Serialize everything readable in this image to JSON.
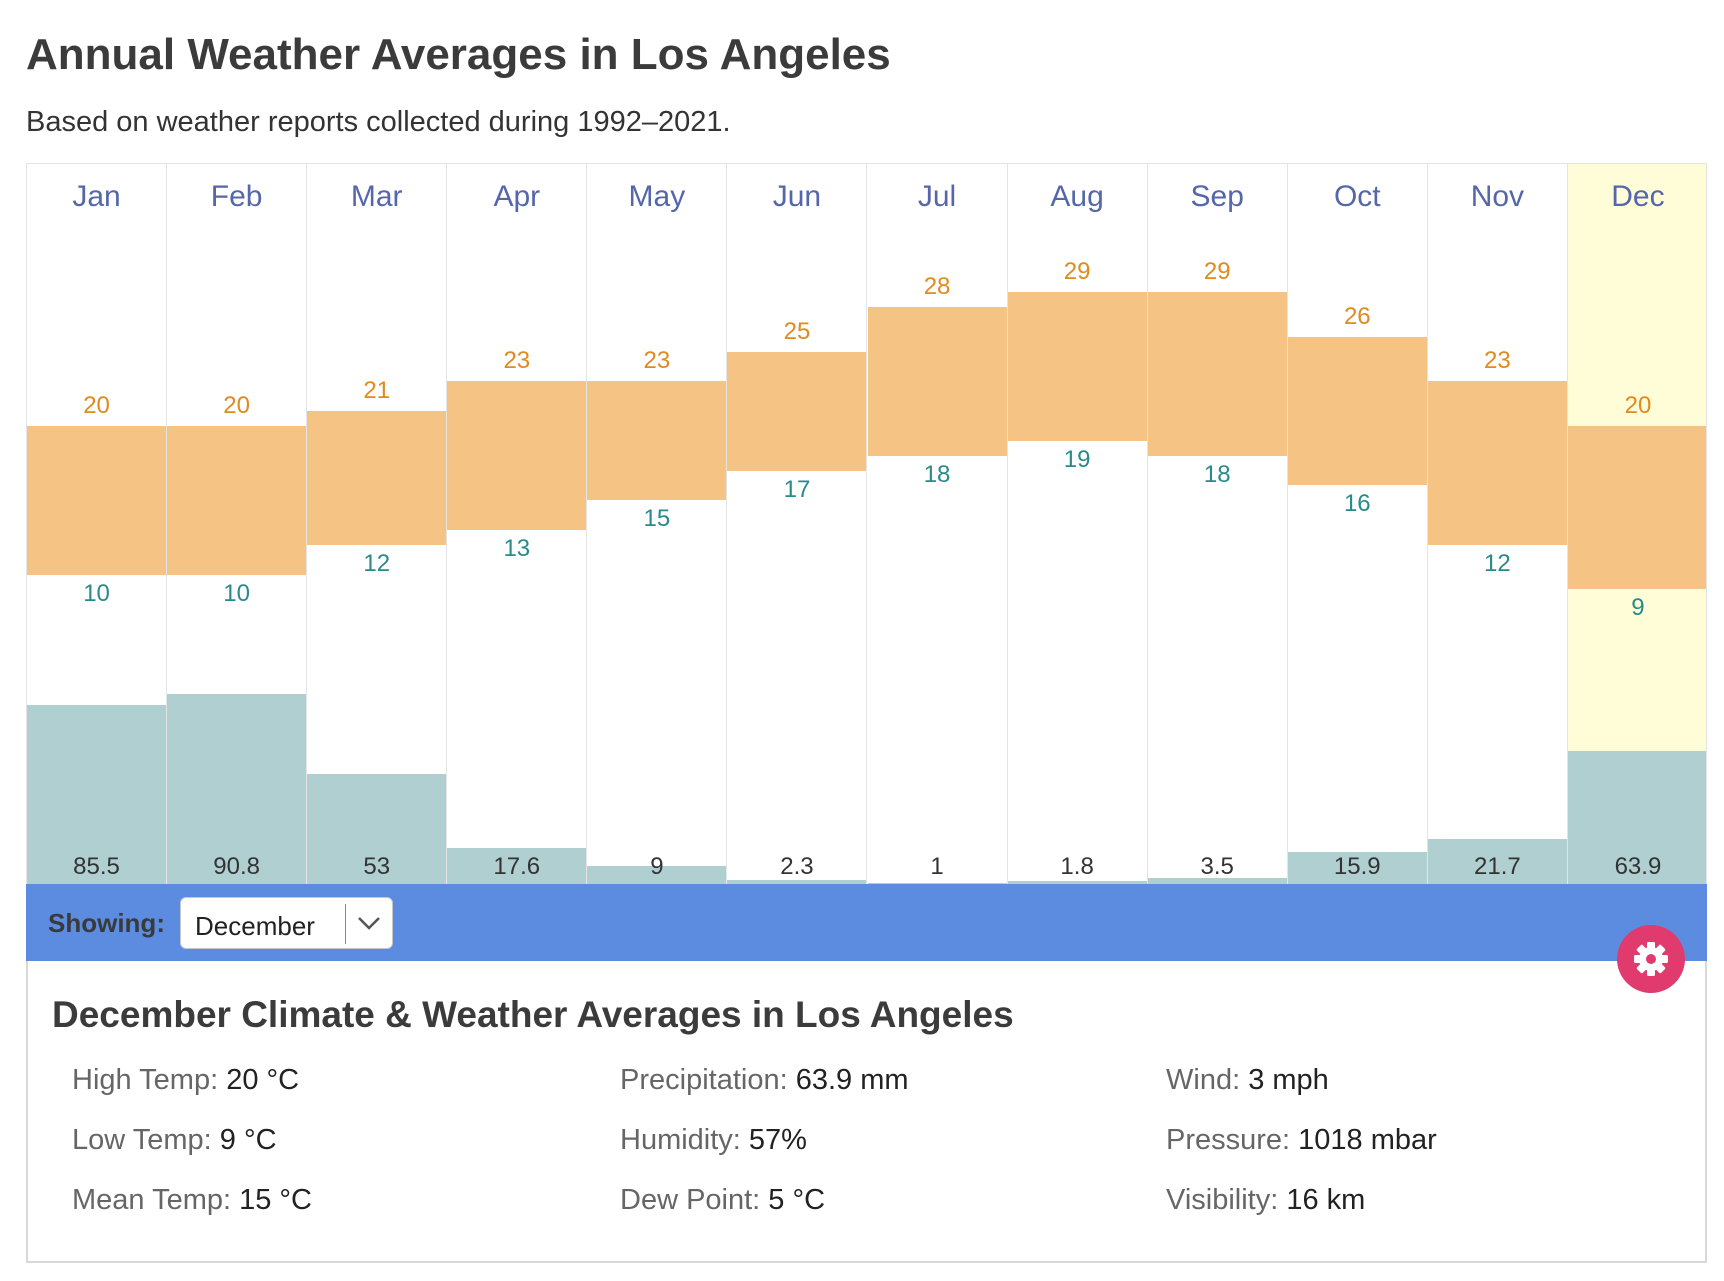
{
  "title": "Annual Weather Averages in Los Angeles",
  "subtitle": "Based on weather reports collected during 1992–2021.",
  "chart_data": {
    "type": "bar",
    "categories": [
      "Jan",
      "Feb",
      "Mar",
      "Apr",
      "May",
      "Jun",
      "Jul",
      "Aug",
      "Sep",
      "Oct",
      "Nov",
      "Dec"
    ],
    "series": [
      {
        "values": [
          20,
          20,
          21,
          23,
          23,
          25,
          28,
          29,
          29,
          26,
          23,
          20
        ]
      },
      {
        "values": [
          10,
          10,
          12,
          13,
          15,
          17,
          18,
          19,
          18,
          16,
          12,
          9
        ]
      },
      {
        "values": [
          85.5,
          90.8,
          53,
          17.6,
          9,
          2.3,
          1,
          1.8,
          3.5,
          15.9,
          21.7,
          63.9
        ]
      }
    ],
    "selected_category": "Dec",
    "legend": "none",
    "grid": false
  },
  "colors": {
    "temp_bar": "#f5c485",
    "precip_bar": "#b0cfd0",
    "selected_bg": "#fefdd8",
    "control_bar": "#5b8cdf",
    "settings_button": "#e03a6f"
  },
  "controls": {
    "showing_label": "Showing:",
    "selected_month": "December",
    "settings_icon": "gear-icon"
  },
  "details": {
    "title": "December Climate & Weather Averages in Los Angeles",
    "stats": [
      {
        "label": "High Temp:",
        "value": "20 °C"
      },
      {
        "label": "Low Temp:",
        "value": "9 °C"
      },
      {
        "label": "Mean Temp:",
        "value": "15 °C"
      },
      {
        "label": "Precipitation:",
        "value": "63.9 mm"
      },
      {
        "label": "Humidity:",
        "value": "57%"
      },
      {
        "label": "Dew Point:",
        "value": "5 °C"
      },
      {
        "label": "Wind:",
        "value": "3 mph"
      },
      {
        "label": "Pressure:",
        "value": "1018 mbar"
      },
      {
        "label": "Visibility:",
        "value": "16 km"
      }
    ]
  }
}
